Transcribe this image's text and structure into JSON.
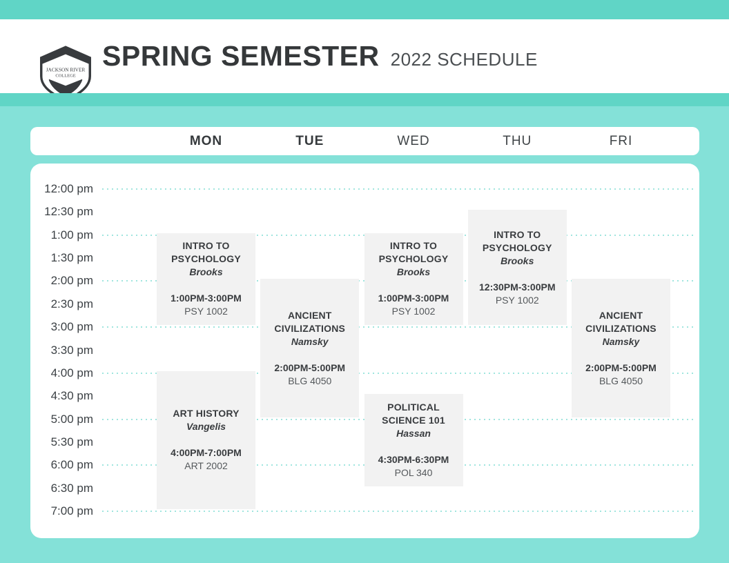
{
  "header": {
    "logo_line1": "JACKSON RIVER",
    "logo_line2": "COLLEGE",
    "title": "SPRING SEMESTER",
    "subtitle": "2022 SCHEDULE"
  },
  "days": [
    {
      "label": "MON",
      "emphasized": true
    },
    {
      "label": "TUE",
      "emphasized": true
    },
    {
      "label": "WED",
      "emphasized": false
    },
    {
      "label": "THU",
      "emphasized": false
    },
    {
      "label": "FRI",
      "emphasized": false
    }
  ],
  "times": [
    "12:00 pm",
    "12:30 pm",
    "1:00 pm",
    "1:30 pm",
    "2:00 pm",
    "2:30 pm",
    "3:00 pm",
    "3:30 pm",
    "4:00 pm",
    "4:30 pm",
    "5:00 pm",
    "5:30 pm",
    "6:00 pm",
    "6:30 pm",
    "7:00 pm"
  ],
  "events": [
    {
      "day": "MON",
      "title": "INTRO TO PSYCHOLOGY",
      "instructor": "Brooks",
      "time": "1:00PM-3:00PM",
      "room": "PSY 1002"
    },
    {
      "day": "MON",
      "title": "ART HISTORY",
      "instructor": "Vangelis",
      "time": "4:00PM-7:00PM",
      "room": "ART 2002"
    },
    {
      "day": "TUE",
      "title": "ANCIENT CIVILIZATIONS",
      "instructor": "Namsky",
      "time": "2:00PM-5:00PM",
      "room": "BLG 4050"
    },
    {
      "day": "WED",
      "title": "INTRO TO PSYCHOLOGY",
      "instructor": "Brooks",
      "time": "1:00PM-3:00PM",
      "room": "PSY 1002"
    },
    {
      "day": "WED",
      "title": "POLITICAL SCIENCE 101",
      "instructor": "Hassan",
      "time": "4:30PM-6:30PM",
      "room": "POL 340"
    },
    {
      "day": "THU",
      "title": "INTRO TO PSYCHOLOGY",
      "instructor": "Brooks",
      "time": "12:30PM-3:00PM",
      "room": "PSY 1002"
    },
    {
      "day": "FRI",
      "title": "ANCIENT CIVILIZATIONS",
      "instructor": "Namsky",
      "time": "2:00PM-5:00PM",
      "room": "BLG 4050"
    }
  ],
  "colors": {
    "accent_teal": "#60d5c6",
    "background_teal": "#84e1d8",
    "dot_teal": "#9fe5de",
    "card_background": "#f2f2f2",
    "text_dark": "#393c3f",
    "text_muted": "#54585b"
  }
}
